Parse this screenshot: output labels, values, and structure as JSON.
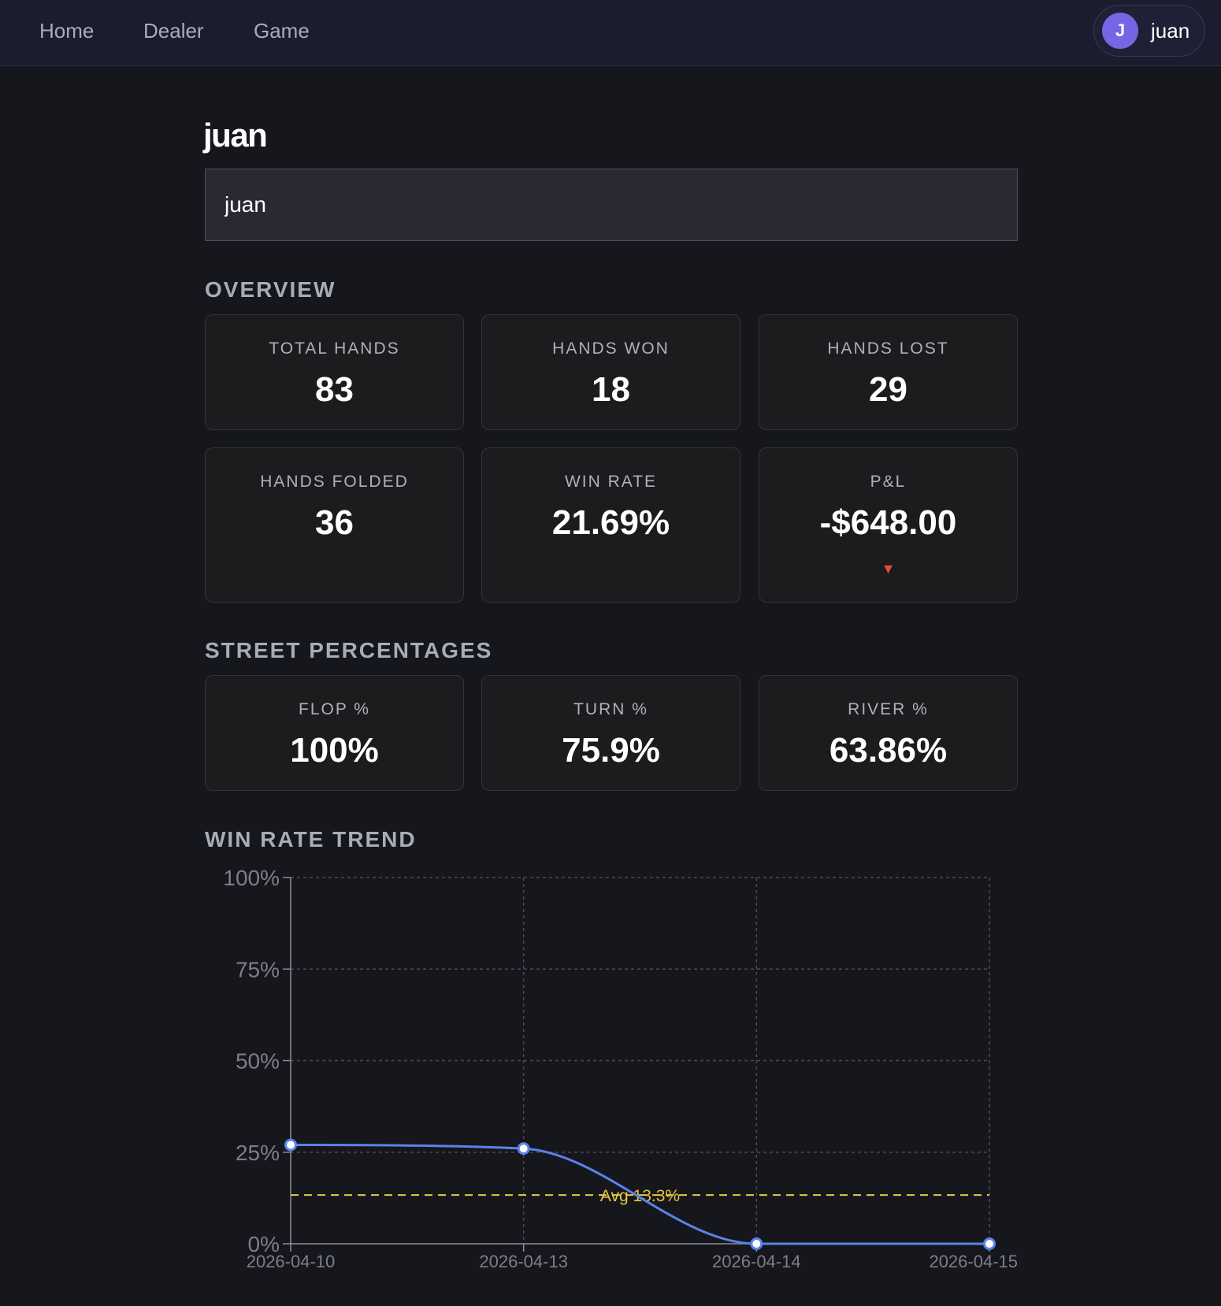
{
  "nav": {
    "items": [
      {
        "label": "Home"
      },
      {
        "label": "Dealer"
      },
      {
        "label": "Game"
      }
    ],
    "user": {
      "initial": "J",
      "name": "juan"
    }
  },
  "page": {
    "title": "juan",
    "name_input_value": "juan"
  },
  "overview": {
    "title": "OVERVIEW",
    "cards": [
      {
        "label": "TOTAL HANDS",
        "value": "83"
      },
      {
        "label": "HANDS WON",
        "value": "18"
      },
      {
        "label": "HANDS LOST",
        "value": "29"
      },
      {
        "label": "HANDS FOLDED",
        "value": "36"
      },
      {
        "label": "WIN RATE",
        "value": "21.69%"
      },
      {
        "label": "P&L",
        "value": "-$648.00",
        "indicator": "▼",
        "indicator_color": "#e34b3f"
      }
    ]
  },
  "streets": {
    "title": "STREET PERCENTAGES",
    "cards": [
      {
        "label": "FLOP %",
        "value": "100%"
      },
      {
        "label": "TURN %",
        "value": "75.9%"
      },
      {
        "label": "RIVER %",
        "value": "63.86%"
      }
    ]
  },
  "trend": {
    "title": "WIN RATE TREND"
  },
  "chart_data": {
    "type": "line",
    "categories": [
      "2026-04-10",
      "2026-04-13",
      "2026-04-14",
      "2026-04-15"
    ],
    "series": [
      {
        "values": [
          27,
          26,
          0,
          0
        ],
        "color": "#5b82e8"
      }
    ],
    "yticks": [
      0,
      25,
      50,
      75,
      100
    ],
    "ytick_labels": [
      "0%",
      "25%",
      "50%",
      "75%",
      "100%"
    ],
    "ylim": [
      0,
      100
    ],
    "grid": true,
    "average": {
      "value": 13.3,
      "label": "Avg 13.3%",
      "color": "#e8c840"
    }
  }
}
